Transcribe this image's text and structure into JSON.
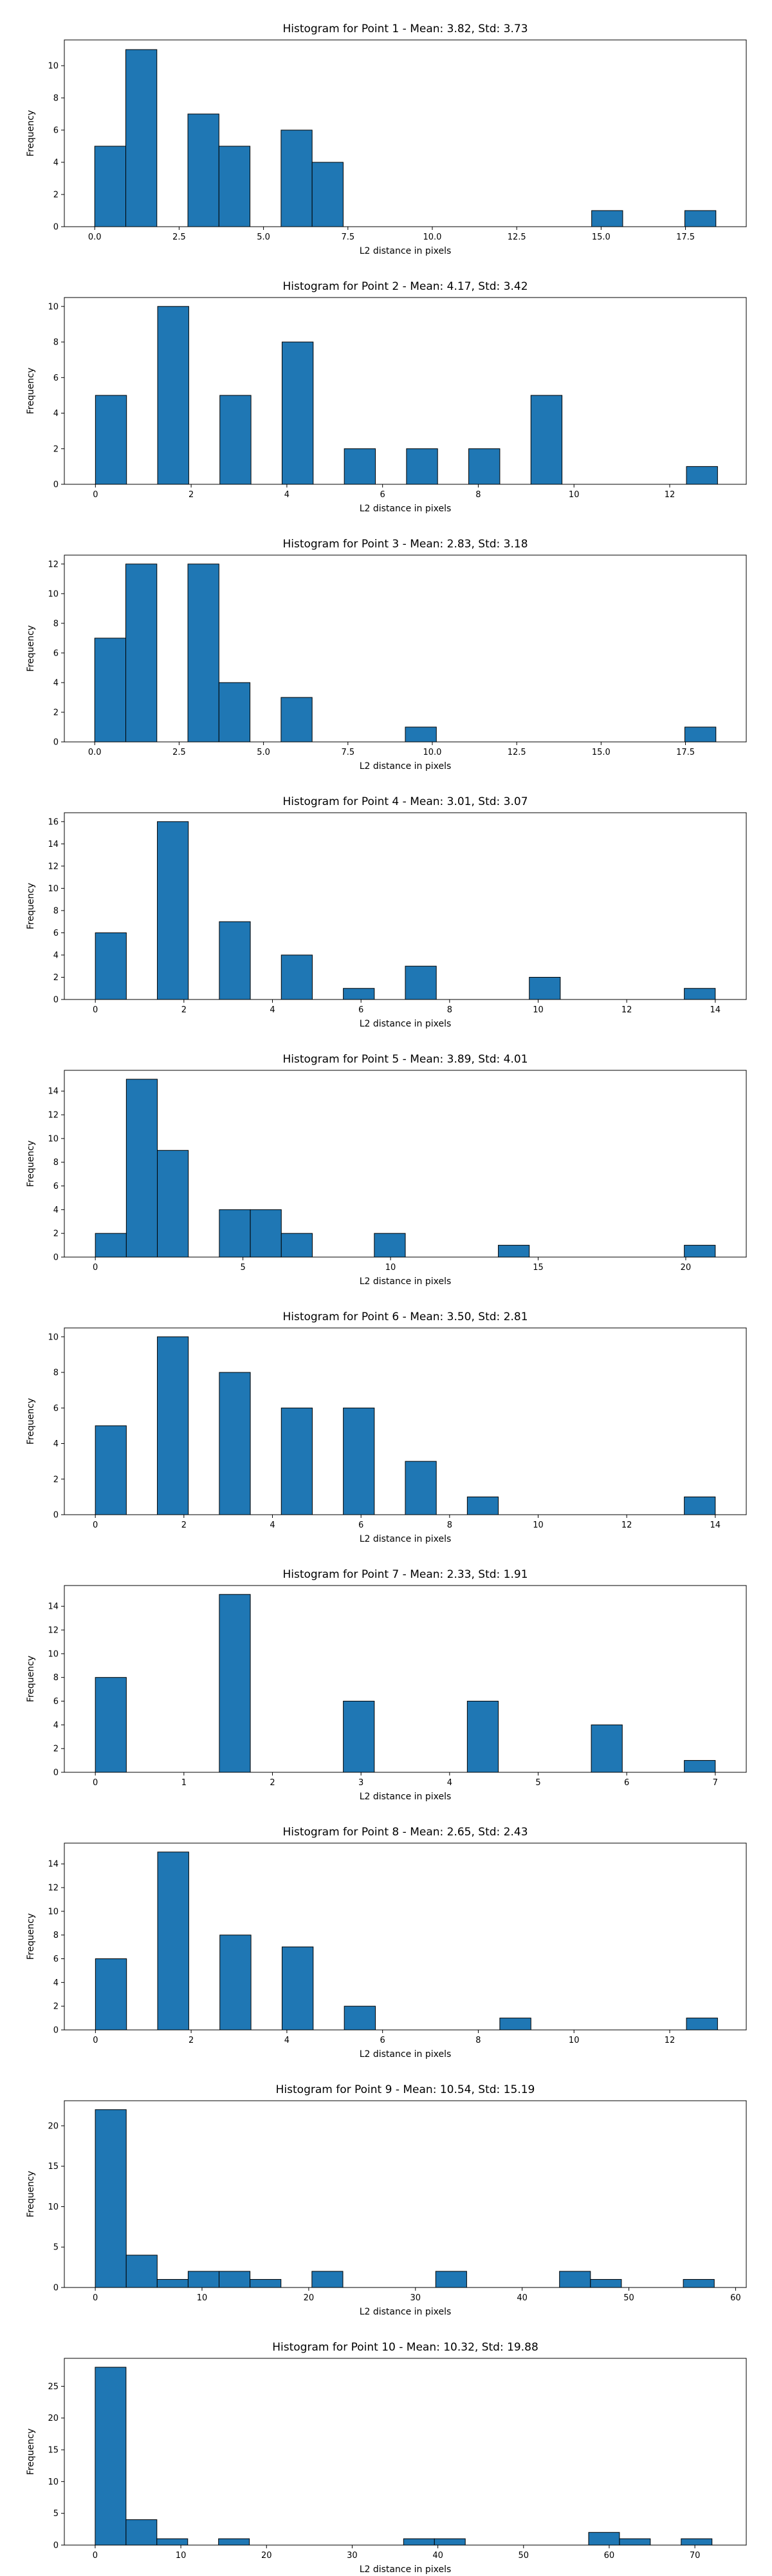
{
  "chart_data": [
    {
      "type": "bar",
      "title": "Histogram for Point 1 - Mean: 3.82, Std: 3.73",
      "xlabel": "L2 distance in pixels",
      "ylabel": "Frequency",
      "xlim": [
        -0.9,
        19.3
      ],
      "ylim": [
        0,
        11.6
      ],
      "xticks": [
        0.0,
        2.5,
        5.0,
        7.5,
        10.0,
        12.5,
        15.0,
        17.5
      ],
      "xtick_labels": [
        "0.0",
        "2.5",
        "5.0",
        "7.5",
        "10.0",
        "12.5",
        "15.0",
        "17.5"
      ],
      "yticks": [
        0,
        2,
        4,
        6,
        8,
        10
      ],
      "ytick_labels": [
        "0",
        "2",
        "4",
        "6",
        "8",
        "10"
      ],
      "bins": [
        {
          "x0": 0.0,
          "x1": 0.92,
          "count": 5
        },
        {
          "x0": 0.92,
          "x1": 1.84,
          "count": 11
        },
        {
          "x0": 2.76,
          "x1": 3.68,
          "count": 7
        },
        {
          "x0": 3.68,
          "x1": 4.6,
          "count": 5
        },
        {
          "x0": 5.52,
          "x1": 6.44,
          "count": 6
        },
        {
          "x0": 6.44,
          "x1": 7.36,
          "count": 4
        },
        {
          "x0": 14.72,
          "x1": 15.64,
          "count": 1
        },
        {
          "x0": 17.48,
          "x1": 18.4,
          "count": 1
        }
      ],
      "color": "#1f77b4"
    },
    {
      "type": "bar",
      "title": "Histogram for Point 2 - Mean: 4.17, Std: 3.42",
      "xlabel": "L2 distance in pixels",
      "ylabel": "Frequency",
      "xlim": [
        -0.65,
        13.6
      ],
      "ylim": [
        0,
        10.5
      ],
      "xticks": [
        0,
        2,
        4,
        6,
        8,
        10,
        12
      ],
      "xtick_labels": [
        "0",
        "2",
        "4",
        "6",
        "8",
        "10",
        "12"
      ],
      "yticks": [
        0,
        2,
        4,
        6,
        8,
        10
      ],
      "ytick_labels": [
        "0",
        "2",
        "4",
        "6",
        "8",
        "10"
      ],
      "bins": [
        {
          "x0": 0.0,
          "x1": 0.65,
          "count": 5
        },
        {
          "x0": 1.3,
          "x1": 1.95,
          "count": 10
        },
        {
          "x0": 2.6,
          "x1": 3.25,
          "count": 5
        },
        {
          "x0": 3.9,
          "x1": 4.55,
          "count": 8
        },
        {
          "x0": 5.2,
          "x1": 5.85,
          "count": 2
        },
        {
          "x0": 6.5,
          "x1": 7.15,
          "count": 2
        },
        {
          "x0": 7.8,
          "x1": 8.45,
          "count": 2
        },
        {
          "x0": 9.1,
          "x1": 9.75,
          "count": 5
        },
        {
          "x0": 12.35,
          "x1": 13.0,
          "count": 1
        }
      ],
      "color": "#1f77b4"
    },
    {
      "type": "bar",
      "title": "Histogram for Point 3 - Mean: 2.83, Std: 3.18",
      "xlabel": "L2 distance in pixels",
      "ylabel": "Frequency",
      "xlim": [
        -0.9,
        19.3
      ],
      "ylim": [
        0,
        12.6
      ],
      "xticks": [
        0.0,
        2.5,
        5.0,
        7.5,
        10.0,
        12.5,
        15.0,
        17.5
      ],
      "xtick_labels": [
        "0.0",
        "2.5",
        "5.0",
        "7.5",
        "10.0",
        "12.5",
        "15.0",
        "17.5"
      ],
      "yticks": [
        0,
        2,
        4,
        6,
        8,
        10,
        12
      ],
      "ytick_labels": [
        "0",
        "2",
        "4",
        "6",
        "8",
        "10",
        "12"
      ],
      "bins": [
        {
          "x0": 0.0,
          "x1": 0.92,
          "count": 7
        },
        {
          "x0": 0.92,
          "x1": 1.84,
          "count": 12
        },
        {
          "x0": 2.76,
          "x1": 3.68,
          "count": 12
        },
        {
          "x0": 3.68,
          "x1": 4.6,
          "count": 4
        },
        {
          "x0": 5.52,
          "x1": 6.44,
          "count": 3
        },
        {
          "x0": 9.2,
          "x1": 10.12,
          "count": 1
        },
        {
          "x0": 17.48,
          "x1": 18.4,
          "count": 1
        }
      ],
      "color": "#1f77b4"
    },
    {
      "type": "bar",
      "title": "Histogram for Point 4 - Mean: 3.01, Std: 3.07",
      "xlabel": "L2 distance in pixels",
      "ylabel": "Frequency",
      "xlim": [
        -0.7,
        14.7
      ],
      "ylim": [
        0,
        16.8
      ],
      "xticks": [
        0,
        2,
        4,
        6,
        8,
        10,
        12,
        14
      ],
      "xtick_labels": [
        "0",
        "2",
        "4",
        "6",
        "8",
        "10",
        "12",
        "14"
      ],
      "yticks": [
        0,
        2,
        4,
        6,
        8,
        10,
        12,
        14,
        16
      ],
      "ytick_labels": [
        "0",
        "2",
        "4",
        "6",
        "8",
        "10",
        "12",
        "14",
        "16"
      ],
      "bins": [
        {
          "x0": 0.0,
          "x1": 0.7,
          "count": 6
        },
        {
          "x0": 1.4,
          "x1": 2.1,
          "count": 16
        },
        {
          "x0": 2.8,
          "x1": 3.5,
          "count": 7
        },
        {
          "x0": 4.2,
          "x1": 4.9,
          "count": 4
        },
        {
          "x0": 5.6,
          "x1": 6.3,
          "count": 1
        },
        {
          "x0": 7.0,
          "x1": 7.7,
          "count": 3
        },
        {
          "x0": 9.8,
          "x1": 10.5,
          "count": 2
        },
        {
          "x0": 13.3,
          "x1": 14.0,
          "count": 1
        }
      ],
      "color": "#1f77b4"
    },
    {
      "type": "bar",
      "title": "Histogram for Point 5 - Mean: 3.89, Std: 4.01",
      "xlabel": "L2 distance in pixels",
      "ylabel": "Frequency",
      "xlim": [
        -1.05,
        22.05
      ],
      "ylim": [
        0,
        15.75
      ],
      "xticks": [
        0,
        5,
        10,
        15,
        20
      ],
      "xtick_labels": [
        "0",
        "5",
        "10",
        "15",
        "20"
      ],
      "yticks": [
        0,
        2,
        4,
        6,
        8,
        10,
        12,
        14
      ],
      "ytick_labels": [
        "0",
        "2",
        "4",
        "6",
        "8",
        "10",
        "12",
        "14"
      ],
      "bins": [
        {
          "x0": 0.0,
          "x1": 1.05,
          "count": 2
        },
        {
          "x0": 1.05,
          "x1": 2.1,
          "count": 15
        },
        {
          "x0": 2.1,
          "x1": 3.15,
          "count": 9
        },
        {
          "x0": 4.2,
          "x1": 5.25,
          "count": 4
        },
        {
          "x0": 5.25,
          "x1": 6.3,
          "count": 4
        },
        {
          "x0": 6.3,
          "x1": 7.35,
          "count": 2
        },
        {
          "x0": 9.45,
          "x1": 10.5,
          "count": 2
        },
        {
          "x0": 13.65,
          "x1": 14.7,
          "count": 1
        },
        {
          "x0": 19.95,
          "x1": 21.0,
          "count": 1
        }
      ],
      "color": "#1f77b4"
    },
    {
      "type": "bar",
      "title": "Histogram for Point 6 - Mean: 3.50, Std: 2.81",
      "xlabel": "L2 distance in pixels",
      "ylabel": "Frequency",
      "xlim": [
        -0.7,
        14.7
      ],
      "ylim": [
        0,
        10.5
      ],
      "xticks": [
        0,
        2,
        4,
        6,
        8,
        10,
        12,
        14
      ],
      "xtick_labels": [
        "0",
        "2",
        "4",
        "6",
        "8",
        "10",
        "12",
        "14"
      ],
      "yticks": [
        0,
        2,
        4,
        6,
        8,
        10
      ],
      "ytick_labels": [
        "0",
        "2",
        "4",
        "6",
        "8",
        "10"
      ],
      "bins": [
        {
          "x0": 0.0,
          "x1": 0.7,
          "count": 5
        },
        {
          "x0": 1.4,
          "x1": 2.1,
          "count": 10
        },
        {
          "x0": 2.8,
          "x1": 3.5,
          "count": 8
        },
        {
          "x0": 4.2,
          "x1": 4.9,
          "count": 6
        },
        {
          "x0": 5.6,
          "x1": 6.3,
          "count": 6
        },
        {
          "x0": 7.0,
          "x1": 7.7,
          "count": 3
        },
        {
          "x0": 8.4,
          "x1": 9.1,
          "count": 1
        },
        {
          "x0": 13.3,
          "x1": 14.0,
          "count": 1
        }
      ],
      "color": "#1f77b4"
    },
    {
      "type": "bar",
      "title": "Histogram for Point 7 - Mean: 2.33, Std: 1.91",
      "xlabel": "L2 distance in pixels",
      "ylabel": "Frequency",
      "xlim": [
        -0.35,
        7.35
      ],
      "ylim": [
        0,
        15.75
      ],
      "xticks": [
        0,
        1,
        2,
        3,
        4,
        5,
        6,
        7
      ],
      "xtick_labels": [
        "0",
        "1",
        "2",
        "3",
        "4",
        "5",
        "6",
        "7"
      ],
      "yticks": [
        0,
        2,
        4,
        6,
        8,
        10,
        12,
        14
      ],
      "ytick_labels": [
        "0",
        "2",
        "4",
        "6",
        "8",
        "10",
        "12",
        "14"
      ],
      "bins": [
        {
          "x0": 0.0,
          "x1": 0.35,
          "count": 8
        },
        {
          "x0": 1.4,
          "x1": 1.75,
          "count": 15
        },
        {
          "x0": 2.8,
          "x1": 3.15,
          "count": 6
        },
        {
          "x0": 4.2,
          "x1": 4.55,
          "count": 6
        },
        {
          "x0": 5.6,
          "x1": 5.95,
          "count": 4
        },
        {
          "x0": 6.65,
          "x1": 7.0,
          "count": 1
        }
      ],
      "color": "#1f77b4"
    },
    {
      "type": "bar",
      "title": "Histogram for Point 8 - Mean: 2.65, Std: 2.43",
      "xlabel": "L2 distance in pixels",
      "ylabel": "Frequency",
      "xlim": [
        -0.65,
        13.6
      ],
      "ylim": [
        0,
        15.75
      ],
      "xticks": [
        0,
        2,
        4,
        6,
        8,
        10,
        12
      ],
      "xtick_labels": [
        "0",
        "2",
        "4",
        "6",
        "8",
        "10",
        "12"
      ],
      "yticks": [
        0,
        2,
        4,
        6,
        8,
        10,
        12,
        14
      ],
      "ytick_labels": [
        "0",
        "2",
        "4",
        "6",
        "8",
        "10",
        "12",
        "14"
      ],
      "bins": [
        {
          "x0": 0.0,
          "x1": 0.65,
          "count": 6
        },
        {
          "x0": 1.3,
          "x1": 1.95,
          "count": 15
        },
        {
          "x0": 2.6,
          "x1": 3.25,
          "count": 8
        },
        {
          "x0": 3.9,
          "x1": 4.55,
          "count": 7
        },
        {
          "x0": 5.2,
          "x1": 5.85,
          "count": 2
        },
        {
          "x0": 8.45,
          "x1": 9.1,
          "count": 1
        },
        {
          "x0": 12.35,
          "x1": 13.0,
          "count": 1
        }
      ],
      "color": "#1f77b4"
    },
    {
      "type": "bar",
      "title": "Histogram for Point 9 - Mean: 10.54, Std: 15.19",
      "xlabel": "L2 distance in pixels",
      "ylabel": "Frequency",
      "xlim": [
        -2.9,
        61.0
      ],
      "ylim": [
        0,
        23.1
      ],
      "xticks": [
        0,
        10,
        20,
        30,
        40,
        50,
        60
      ],
      "xtick_labels": [
        "0",
        "10",
        "20",
        "30",
        "40",
        "50",
        "60"
      ],
      "yticks": [
        0,
        5,
        10,
        15,
        20
      ],
      "ytick_labels": [
        "0",
        "5",
        "10",
        "15",
        "20"
      ],
      "bins": [
        {
          "x0": 0.0,
          "x1": 2.9,
          "count": 22
        },
        {
          "x0": 2.9,
          "x1": 5.8,
          "count": 4
        },
        {
          "x0": 5.8,
          "x1": 8.7,
          "count": 1
        },
        {
          "x0": 8.7,
          "x1": 11.6,
          "count": 2
        },
        {
          "x0": 11.6,
          "x1": 14.5,
          "count": 2
        },
        {
          "x0": 14.5,
          "x1": 17.4,
          "count": 1
        },
        {
          "x0": 20.3,
          "x1": 23.2,
          "count": 2
        },
        {
          "x0": 31.9,
          "x1": 34.8,
          "count": 2
        },
        {
          "x0": 43.5,
          "x1": 46.4,
          "count": 2
        },
        {
          "x0": 46.4,
          "x1": 49.3,
          "count": 1
        },
        {
          "x0": 55.1,
          "x1": 58.0,
          "count": 1
        }
      ],
      "color": "#1f77b4"
    },
    {
      "type": "bar",
      "title": "Histogram for Point 10 - Mean: 10.32, Std: 19.88",
      "xlabel": "L2 distance in pixels",
      "ylabel": "Frequency",
      "xlim": [
        -3.6,
        76.0
      ],
      "ylim": [
        0,
        29.4
      ],
      "xticks": [
        0,
        10,
        20,
        30,
        40,
        50,
        60,
        70
      ],
      "xtick_labels": [
        "0",
        "10",
        "20",
        "30",
        "40",
        "50",
        "60",
        "70"
      ],
      "yticks": [
        0,
        5,
        10,
        15,
        20,
        25
      ],
      "ytick_labels": [
        "0",
        "5",
        "10",
        "15",
        "20",
        "25"
      ],
      "bins": [
        {
          "x0": 0.0,
          "x1": 3.6,
          "count": 28
        },
        {
          "x0": 3.6,
          "x1": 7.2,
          "count": 4
        },
        {
          "x0": 7.2,
          "x1": 10.8,
          "count": 1
        },
        {
          "x0": 14.4,
          "x1": 18.0,
          "count": 1
        },
        {
          "x0": 36.0,
          "x1": 39.6,
          "count": 1
        },
        {
          "x0": 39.6,
          "x1": 43.2,
          "count": 1
        },
        {
          "x0": 57.6,
          "x1": 61.2,
          "count": 2
        },
        {
          "x0": 61.2,
          "x1": 64.8,
          "count": 1
        },
        {
          "x0": 68.4,
          "x1": 72.0,
          "count": 1
        }
      ],
      "color": "#1f77b4"
    }
  ]
}
